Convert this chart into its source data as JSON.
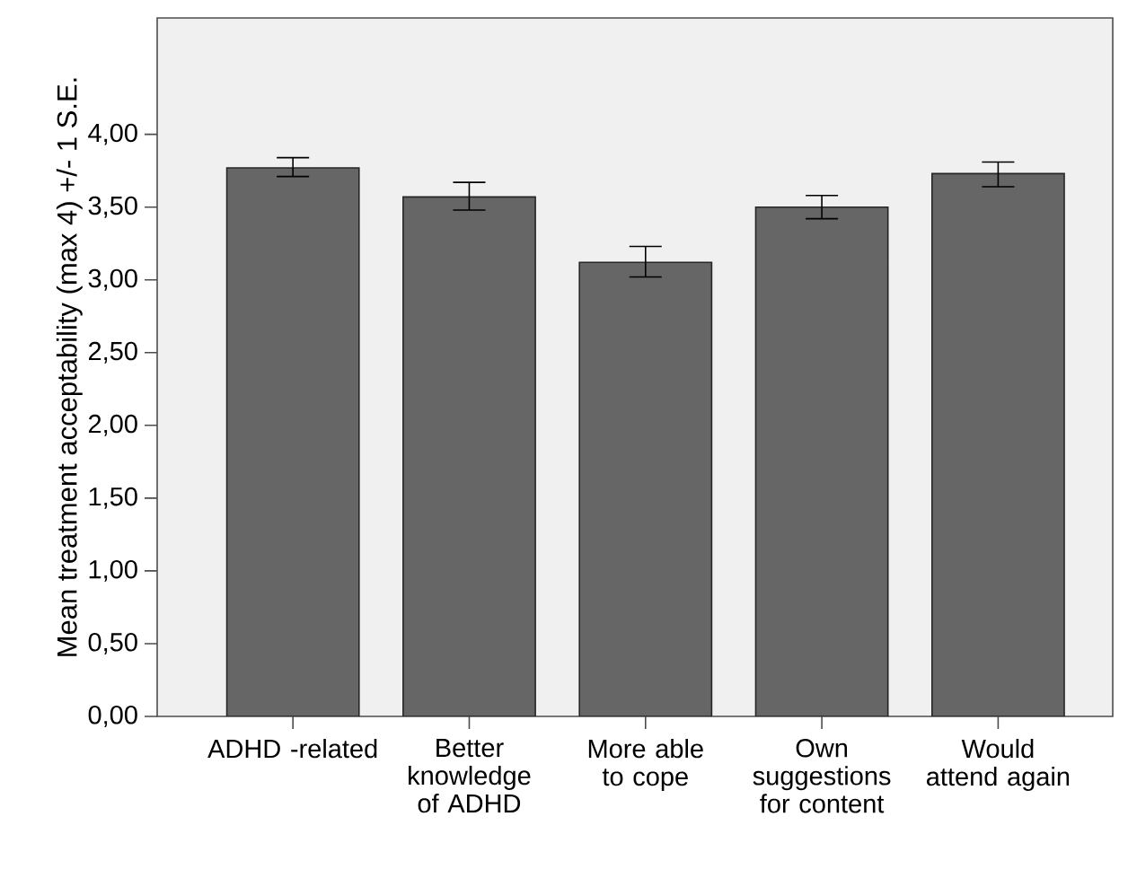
{
  "chart_data": {
    "type": "bar",
    "ylabel": "Mean treatment acceptability (max 4) +/- 1 S.E.",
    "categories": [
      "ADHD -related",
      "Better knowledge of ADHD",
      "More able to cope",
      "Own suggestions for content",
      "Would attend again"
    ],
    "values": [
      3.77,
      3.57,
      3.12,
      3.5,
      3.73
    ],
    "errors": [
      [
        3.71,
        3.84
      ],
      [
        3.48,
        3.67
      ],
      [
        3.02,
        3.23
      ],
      [
        3.42,
        3.58
      ],
      [
        3.64,
        3.81
      ]
    ],
    "color": "#666666",
    "ylim": [
      0,
      4.8
    ],
    "yticks": [
      {
        "value": 0,
        "label": "0,00"
      },
      {
        "value": 0.5,
        "label": "0,50"
      },
      {
        "value": 1,
        "label": "1,00"
      },
      {
        "value": 1.5,
        "label": "1,50"
      },
      {
        "value": 2,
        "label": "2,00"
      },
      {
        "value": 2.5,
        "label": "2,50"
      },
      {
        "value": 3,
        "label": "3,00"
      },
      {
        "value": 3.5,
        "label": "3,50"
      },
      {
        "value": 4,
        "label": "4,00"
      }
    ]
  }
}
